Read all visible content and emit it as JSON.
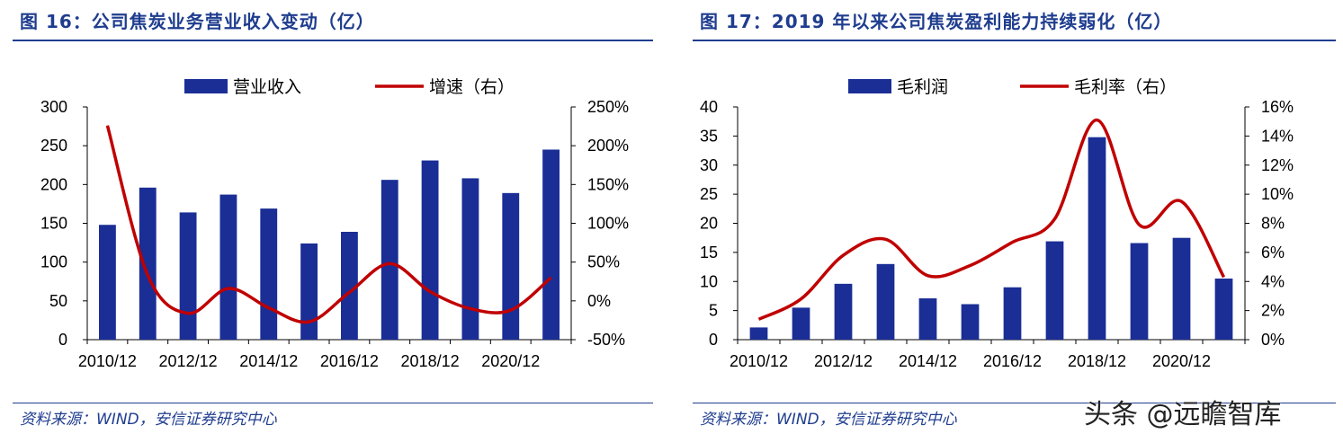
{
  "colors": {
    "bar": "#1a2e96",
    "line": "#c00000",
    "title": "#1f3d8f"
  },
  "left_panel": {
    "title": "图 16：公司焦炭业务营业收入变动（亿）",
    "source": "资料来源：WIND，安信证券研究中心"
  },
  "right_panel": {
    "title": "图 17：2019 年以来公司焦炭盈利能力持续弱化（亿）",
    "source": "资料来源：WIND，安信证券研究中心"
  },
  "watermark": "头条 @远瞻智库",
  "chart_data": [
    {
      "type": "bar",
      "title": "",
      "categories": [
        "2010/12",
        "2011/12",
        "2012/12",
        "2013/12",
        "2014/12",
        "2015/12",
        "2016/12",
        "2017/12",
        "2018/12",
        "2019/12",
        "2020/12",
        "2021/12"
      ],
      "x_tick_labels": [
        "2010/12",
        "2012/12",
        "2014/12",
        "2016/12",
        "2018/12",
        "2020/12"
      ],
      "series": [
        {
          "name": "营业收入",
          "type": "bar",
          "axis": "left",
          "values": [
            148,
            196,
            164,
            187,
            169,
            124,
            139,
            206,
            231,
            208,
            189,
            245
          ]
        },
        {
          "name": "增速（右）",
          "type": "line",
          "axis": "right",
          "unit": "%",
          "values": [
            226,
            33,
            -16,
            16,
            -9,
            -27,
            11,
            48,
            12,
            -10,
            -12,
            30
          ]
        }
      ],
      "ylim_left": [
        0,
        300
      ],
      "yticks_left": [
        "300",
        "250",
        "200",
        "150",
        "100",
        "50",
        "0"
      ],
      "ylim_right": [
        -50,
        250
      ],
      "yticks_right": [
        "250%",
        "200%",
        "150%",
        "100%",
        "50%",
        "0%",
        "-50%"
      ],
      "legend_position": "top-center",
      "grid": false
    },
    {
      "type": "bar",
      "title": "",
      "categories": [
        "2010/12",
        "2011/12",
        "2012/12",
        "2013/12",
        "2014/12",
        "2015/12",
        "2016/12",
        "2017/12",
        "2018/12",
        "2019/12",
        "2020/12",
        "2021/12"
      ],
      "x_tick_labels": [
        "2010/12",
        "2012/12",
        "2014/12",
        "2016/12",
        "2018/12",
        "2020/12"
      ],
      "series": [
        {
          "name": "毛利润",
          "type": "bar",
          "axis": "left",
          "values": [
            2.1,
            5.5,
            9.6,
            13.0,
            7.1,
            6.1,
            9.0,
            16.9,
            34.8,
            16.6,
            17.5,
            10.5
          ]
        },
        {
          "name": "毛利率（右）",
          "type": "line",
          "axis": "right",
          "unit": "%",
          "values": [
            1.4,
            2.8,
            5.8,
            6.9,
            4.4,
            5.1,
            6.7,
            8.3,
            15.1,
            7.9,
            9.5,
            4.3
          ]
        }
      ],
      "ylim_left": [
        0,
        40
      ],
      "yticks_left": [
        "40",
        "35",
        "30",
        "25",
        "20",
        "15",
        "10",
        "5",
        "0"
      ],
      "ylim_right": [
        0,
        16
      ],
      "yticks_right": [
        "16%",
        "14%",
        "12%",
        "10%",
        "8%",
        "6%",
        "4%",
        "2%",
        "0%"
      ],
      "legend_position": "top-center",
      "grid": false
    }
  ]
}
